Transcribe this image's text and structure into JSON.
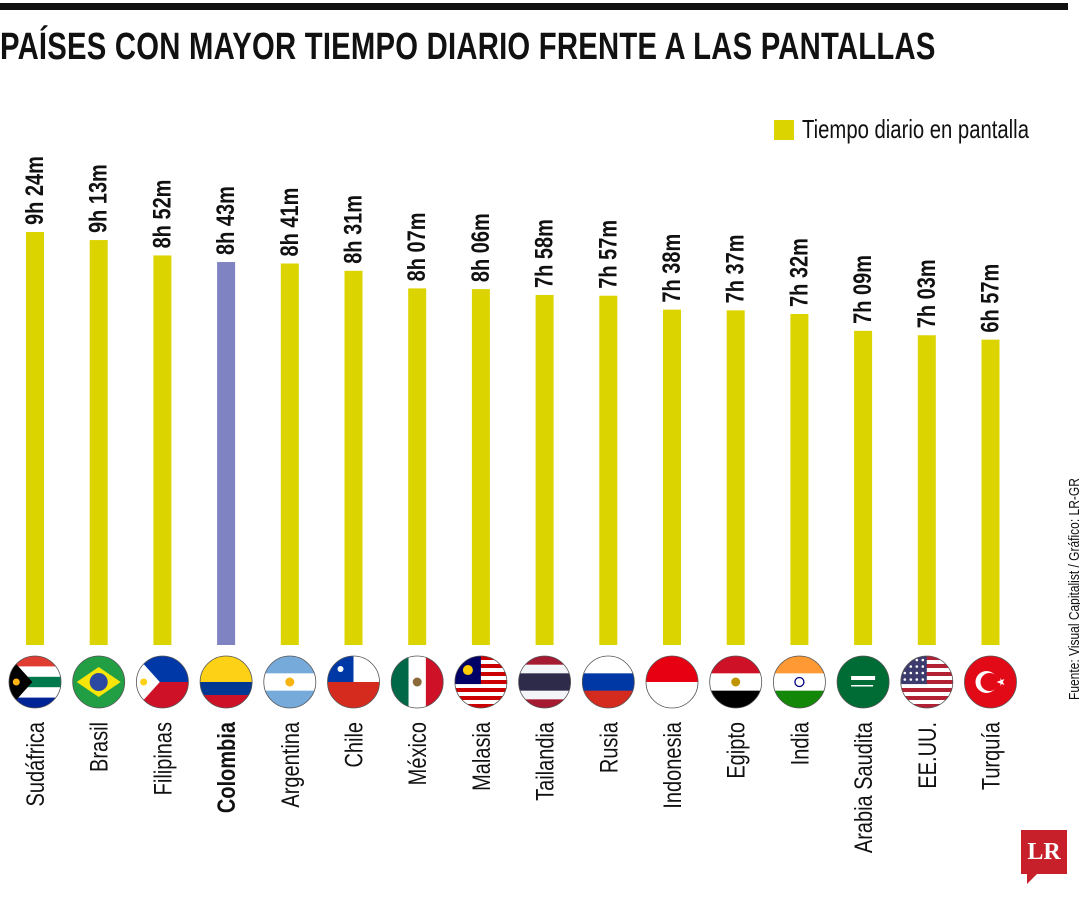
{
  "title": "PAÍSES CON MAYOR TIEMPO DIARIO FRENTE A LAS PANTALLAS",
  "legend": "Tiempo diario en pantalla",
  "source": "Fuente: Visual Capitalist / Gráfico: LR-GR",
  "logo": "LR",
  "colors": {
    "bar": "#dcd400",
    "highlight": "#7f83c1"
  },
  "chart_data": {
    "type": "bar",
    "title": "PAÍSES CON MAYOR TIEMPO DIARIO FRENTE A LAS PANTALLAS",
    "xlabel": "",
    "ylabel": "",
    "unit": "minutes",
    "ylim": [
      0,
      564
    ],
    "grid": false,
    "legend_position": "top-right",
    "categories": [
      "Sudáfrica",
      "Brasil",
      "Filipinas",
      "Colombia",
      "Argentina",
      "Chile",
      "México",
      "Malasia",
      "Tailandia",
      "Rusia",
      "Indonesia",
      "Egipto",
      "India",
      "Arabia Saudita",
      "EE.UU.",
      "Turquía"
    ],
    "values": [
      564,
      553,
      532,
      523,
      521,
      511,
      487,
      486,
      478,
      477,
      458,
      457,
      452,
      429,
      423,
      417
    ],
    "labels": [
      "9h 24m",
      "9h 13m",
      "8h 52m",
      "8h 43m",
      "8h 41m",
      "8h 31m",
      "8h 07m",
      "8h 06m",
      "7h 58m",
      "7h 57m",
      "7h 38m",
      "7h 37m",
      "7h 32m",
      "7h 09m",
      "7h 03m",
      "6h 57m"
    ],
    "highlight": "Colombia",
    "flags": [
      "za-flag-icon",
      "br-flag-icon",
      "ph-flag-icon",
      "co-flag-icon",
      "ar-flag-icon",
      "cl-flag-icon",
      "mx-flag-icon",
      "my-flag-icon",
      "th-flag-icon",
      "ru-flag-icon",
      "id-flag-icon",
      "eg-flag-icon",
      "in-flag-icon",
      "sa-flag-icon",
      "us-flag-icon",
      "tr-flag-icon"
    ]
  }
}
